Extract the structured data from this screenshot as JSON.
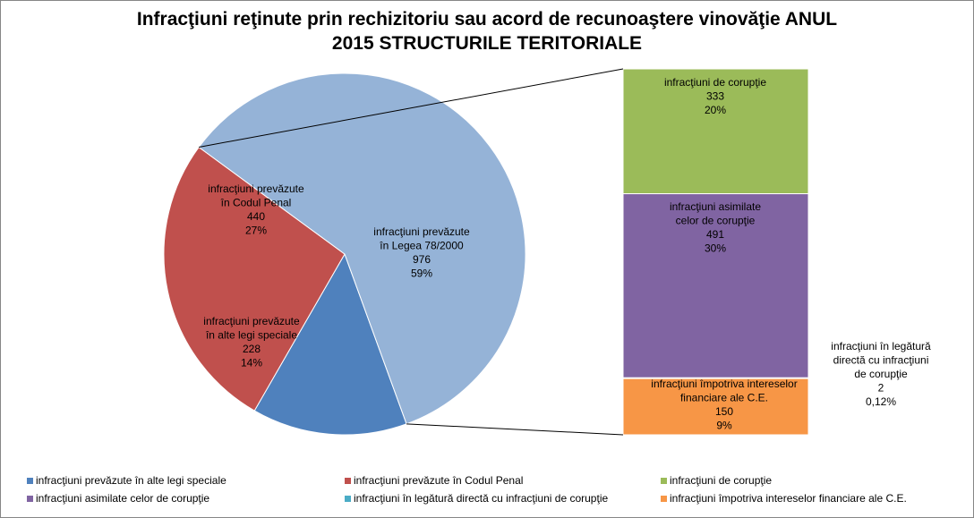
{
  "chart_data": {
    "type": "pie",
    "title": "Infracţiuni reţinute prin rechizitoriu sau acord de recunoaştere vinovăţie ANUL 2015  STRUCTURILE TERITORIALE",
    "title_lines": [
      "Infracţiuni reţinute prin rechizitoriu sau acord de recunoaştere vinovăţie ANUL",
      "2015  STRUCTURILE TERITORIALE"
    ],
    "subtype": "pie-of-bar",
    "pie": [
      {
        "lines": [
          "infracţiuni  prevăzute",
          "în alte legi speciale"
        ],
        "value": 228,
        "value_label": "228",
        "percent_label": "14%",
        "color": "#4F81BD"
      },
      {
        "lines": [
          "infracţiuni  prevăzute",
          "în Codul Penal"
        ],
        "value": 440,
        "value_label": "440",
        "percent_label": "27%",
        "color": "#C0504D"
      },
      {
        "lines": [
          "infracţiuni  prevăzute",
          "în Legea  78/2000"
        ],
        "value": 976,
        "value_label": "976",
        "percent_label": "59%",
        "color": "#95B3D7"
      }
    ],
    "bar": [
      {
        "lines": [
          "infracţiuni  de corupţie"
        ],
        "value": 333,
        "value_label": "333",
        "percent_label": "20%",
        "color": "#9BBB59"
      },
      {
        "lines": [
          "infracţiuni  asimilate",
          "celor de corupţie"
        ],
        "value": 491,
        "value_label": "491",
        "percent_label": "30%",
        "color": "#8064A2"
      },
      {
        "lines": [
          "infracţiuni  în legătură",
          "directă  cu infracţiuni",
          "de corupţie"
        ],
        "value": 2,
        "value_label": "2",
        "percent_label": "0,12%",
        "color": "#4BACC6"
      },
      {
        "lines": [
          "infracţiuni  împotriva  intereselor",
          "financiare  ale C.E."
        ],
        "value": 150,
        "value_label": "150",
        "percent_label": "9%",
        "color": "#F79646"
      }
    ],
    "legend": {
      "placement": "bottom",
      "items": [
        {
          "label": "infracţiuni prevăzute în alte legi speciale",
          "color": "#4F81BD"
        },
        {
          "label": "infracţiuni prevăzute în Codul Penal",
          "color": "#C0504D"
        },
        {
          "label": "infracţiuni de corupţie",
          "color": "#9BBB59"
        },
        {
          "label": "infracţiuni asimilate celor de corupţie",
          "color": "#8064A2"
        },
        {
          "label": "infracţiuni în legătură directă cu infracţiuni de corupţie",
          "color": "#4BACC6"
        },
        {
          "label": "infracţiuni împotriva intereselor financiare ale C.E.",
          "color": "#F79646"
        }
      ]
    }
  }
}
